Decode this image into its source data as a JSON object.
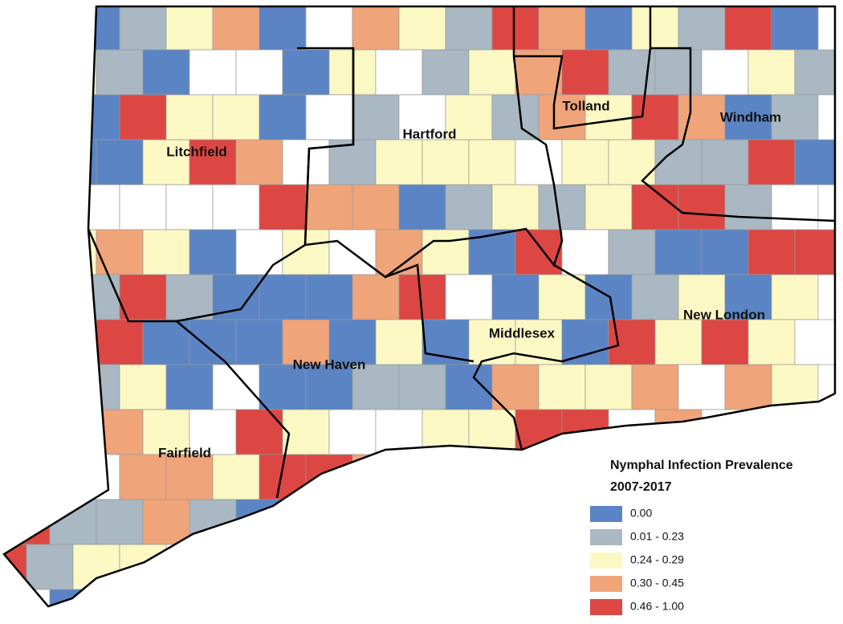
{
  "map": {
    "regions": [
      {
        "label": "Litchfield"
      },
      {
        "label": "Hartford"
      },
      {
        "label": "Tolland"
      },
      {
        "label": "Windham"
      },
      {
        "label": "New London"
      },
      {
        "label": "Middlesex"
      },
      {
        "label": "New Haven"
      },
      {
        "label": "Fairfield"
      }
    ],
    "legend": {
      "title": "Nymphal Infection Prevalence",
      "period": "2007-2017",
      "items": [
        {
          "label": "0.00",
          "color": "#5a84c4"
        },
        {
          "label": "0.01 - 0.23",
          "color": "#a9b8c2"
        },
        {
          "label": "0.24 - 0.29",
          "color": "#fcf8c4"
        },
        {
          "label": "0.30 - 0.45",
          "color": "#f0a479"
        },
        {
          "label": "0.46 - 1.00",
          "color": "#dc4743"
        }
      ]
    }
  }
}
